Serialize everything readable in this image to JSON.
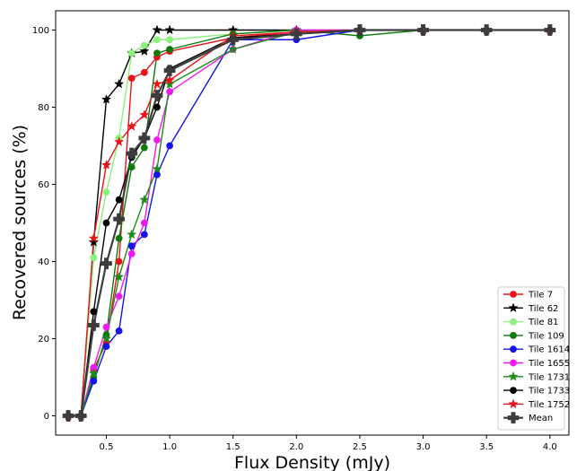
{
  "chart_data": {
    "type": "line",
    "title": "",
    "xlabel": "Flux Density (mJy)",
    "ylabel": "Recovered sources (%)",
    "xlim": [
      0.1,
      4.15
    ],
    "ylim": [
      -5,
      105
    ],
    "x_ticks": [
      0.5,
      1.0,
      1.5,
      2.0,
      2.5,
      3.0,
      3.5,
      4.0
    ],
    "x_tick_labels": [
      "0.5",
      "1.0",
      "1.5",
      "2.0",
      "2.5",
      "3.0",
      "3.5",
      "4.0"
    ],
    "y_ticks": [
      0,
      20,
      40,
      60,
      80,
      100
    ],
    "y_tick_labels": [
      "0",
      "20",
      "40",
      "60",
      "80",
      "100"
    ],
    "grid": false,
    "legend_position": "lower-right",
    "x": [
      0.2,
      0.3,
      0.4,
      0.5,
      0.6,
      0.7,
      0.8,
      0.9,
      1.0,
      1.5,
      2.0,
      2.5,
      3.0,
      3.5,
      4.0
    ],
    "series": [
      {
        "name": "Tile 7",
        "color": "#e8141b",
        "marker": "circle",
        "values": [
          0,
          0,
          12,
          19,
          40,
          87.5,
          89,
          93,
          94.5,
          98,
          99.5,
          100,
          100,
          100,
          100
        ]
      },
      {
        "name": "Tile 62",
        "color": "#000000",
        "marker": "star",
        "values": [
          0,
          0,
          45,
          82,
          86,
          94,
          94.5,
          100,
          100,
          100,
          100,
          100,
          100,
          100,
          100
        ]
      },
      {
        "name": "Tile 81",
        "color": "#8bf07c",
        "marker": "circle",
        "values": [
          0,
          0,
          41,
          58,
          72,
          94,
          96,
          97.5,
          97.5,
          99,
          100,
          100,
          100,
          100,
          100
        ]
      },
      {
        "name": "Tile 109",
        "color": "#0b7a0b",
        "marker": "circle",
        "values": [
          0,
          0,
          10,
          21,
          46,
          64.5,
          69.5,
          94,
          95,
          99,
          100,
          98.5,
          100,
          100,
          100
        ]
      },
      {
        "name": "Tile 1614",
        "color": "#1414e8",
        "marker": "circle",
        "values": [
          0,
          0,
          9,
          18,
          22,
          44,
          47,
          62.5,
          70,
          97.5,
          97.5,
          100,
          100,
          100,
          100
        ]
      },
      {
        "name": "Tile 1655",
        "color": "#f01af0",
        "marker": "circle",
        "values": [
          0,
          0,
          12.5,
          23,
          31,
          42,
          50,
          71.5,
          84,
          95,
          100,
          100,
          100,
          100,
          100
        ]
      },
      {
        "name": "Tile 1731",
        "color": "#1b8c1b",
        "marker": "star",
        "values": [
          0,
          0,
          11,
          20,
          36,
          47,
          56,
          64,
          86,
          95,
          99.5,
          100,
          100,
          100,
          100
        ]
      },
      {
        "name": "Tile 1733",
        "color": "#000000",
        "marker": "circle",
        "values": [
          0,
          0,
          27,
          50,
          56,
          67,
          72,
          80,
          90,
          98,
          99,
          100,
          100,
          100,
          100
        ]
      },
      {
        "name": "Tile 1752",
        "color": "#e8141b",
        "marker": "star",
        "values": [
          0,
          0,
          46,
          65,
          71,
          75,
          78,
          86,
          87,
          98.5,
          99.5,
          100,
          100,
          100,
          100
        ]
      },
      {
        "name": "Mean",
        "color": "#3c3c3c",
        "marker": "plus",
        "values": [
          0,
          0,
          23.5,
          39.5,
          51,
          68,
          72,
          83,
          89.5,
          97.5,
          99,
          100,
          100,
          100,
          100
        ]
      }
    ]
  }
}
